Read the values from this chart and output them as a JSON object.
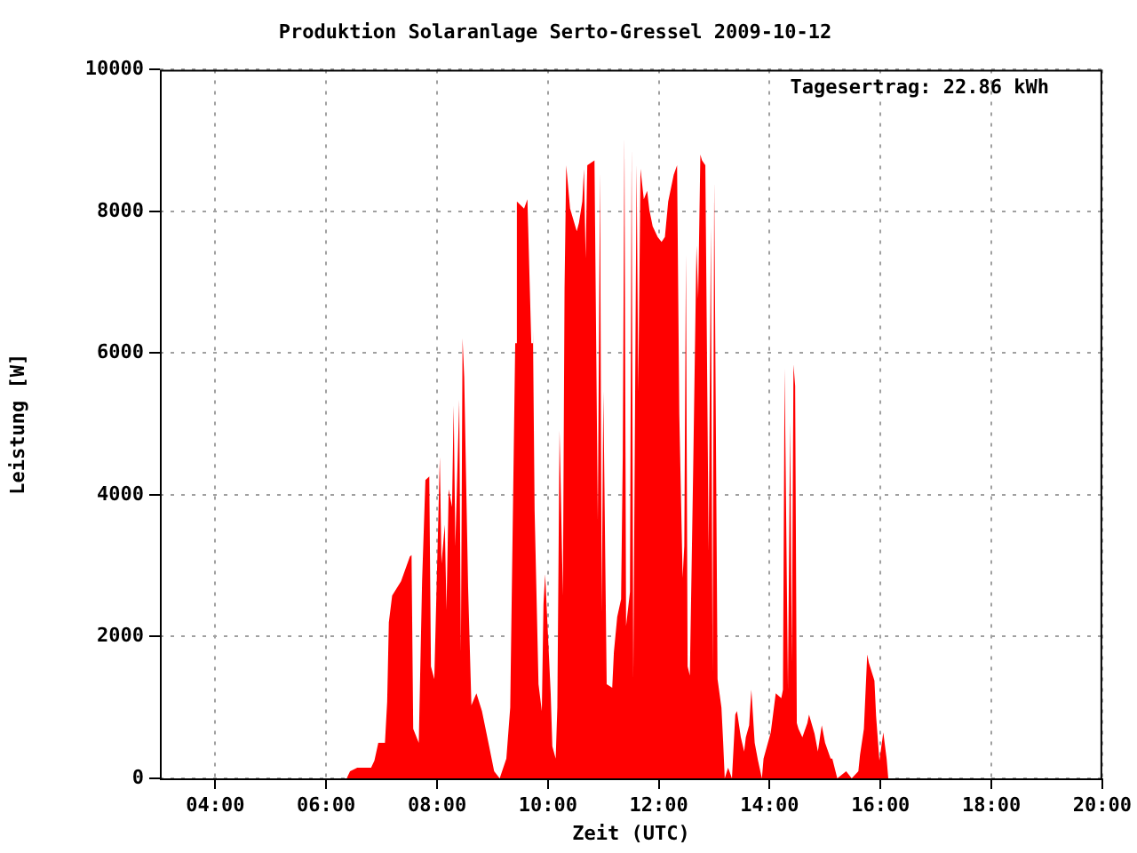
{
  "chart_data": {
    "type": "area",
    "title": "Produktion Solaranlage Serto-Gressel 2009-10-12",
    "xlabel": "Zeit (UTC)",
    "ylabel": "Leistung [W]",
    "annotations": [
      "Tagesertrag: 22.86 kWh"
    ],
    "xlim": [
      3,
      20
    ],
    "xticks": [
      {
        "value": 4,
        "label": "04:00"
      },
      {
        "value": 6,
        "label": "06:00"
      },
      {
        "value": 8,
        "label": "08:00"
      },
      {
        "value": 10,
        "label": "10:00"
      },
      {
        "value": 12,
        "label": "12:00"
      },
      {
        "value": 14,
        "label": "14:00"
      },
      {
        "value": 16,
        "label": "16:00"
      },
      {
        "value": 18,
        "label": "18:00"
      },
      {
        "value": 20,
        "label": "20:00"
      }
    ],
    "ylim": [
      0,
      10000
    ],
    "yticks": [
      0,
      2000,
      4000,
      6000,
      8000,
      10000
    ],
    "grid": true,
    "series": [
      {
        "color": "#ff0000",
        "x": [
          6.37,
          6.43,
          6.56,
          6.68,
          6.81,
          6.87,
          6.94,
          7.06,
          7.1,
          7.13,
          7.19,
          7.35,
          7.51,
          7.54,
          7.57,
          7.67,
          7.73,
          7.79,
          7.86,
          7.89,
          7.95,
          8.05,
          8.08,
          8.14,
          8.17,
          8.21,
          8.27,
          8.3,
          8.33,
          8.4,
          8.43,
          8.46,
          8.49,
          8.56,
          8.62,
          8.71,
          8.81,
          8.94,
          9.03,
          9.13,
          9.25,
          9.32,
          9.41,
          9.44,
          9.57,
          9.63,
          9.7,
          9.73,
          9.76,
          9.83,
          9.89,
          9.92,
          9.95,
          10.05,
          10.08,
          10.14,
          10.17,
          10.21,
          10.27,
          10.3,
          10.33,
          10.4,
          10.52,
          10.56,
          10.62,
          10.65,
          10.68,
          10.71,
          10.84,
          10.9,
          10.94,
          10.97,
          11.0,
          11.06,
          11.16,
          11.19,
          11.25,
          11.32,
          11.35,
          11.38,
          11.41,
          11.48,
          11.51,
          11.54,
          11.6,
          11.63,
          11.67,
          11.73,
          11.79,
          11.83,
          11.89,
          11.98,
          12.05,
          12.11,
          12.17,
          12.27,
          12.33,
          12.37,
          12.43,
          12.46,
          12.49,
          12.52,
          12.56,
          12.59,
          12.62,
          12.68,
          12.71,
          12.75,
          12.78,
          12.84,
          12.9,
          12.94,
          12.97,
          13.0,
          13.06,
          13.13,
          13.16,
          13.19,
          13.25,
          13.32,
          13.38,
          13.41,
          13.48,
          13.54,
          13.57,
          13.63,
          13.67,
          13.73,
          13.79,
          13.86,
          13.89,
          14.02,
          14.11,
          14.21,
          14.24,
          14.27,
          14.33,
          14.37,
          14.4,
          14.43,
          14.46,
          14.49,
          14.52,
          14.59,
          14.68,
          14.71,
          14.81,
          14.87,
          14.94,
          15.0,
          15.1,
          15.13,
          15.22,
          15.38,
          15.48,
          15.6,
          15.63,
          15.7,
          15.76,
          15.79,
          15.89,
          15.92,
          15.98,
          16.05,
          16.11,
          16.14
        ],
        "values": [
          0,
          100,
          150,
          150,
          150,
          250,
          500,
          500,
          1080,
          2200,
          2580,
          2780,
          3130,
          3150,
          700,
          500,
          2780,
          4210,
          4260,
          1580,
          1400,
          4540,
          3030,
          3580,
          2380,
          4080,
          3830,
          5260,
          3280,
          5340,
          1780,
          6210,
          5660,
          2700,
          1030,
          1200,
          950,
          450,
          100,
          0,
          280,
          1000,
          6140,
          8140,
          8040,
          8170,
          6140,
          6340,
          3780,
          1330,
          950,
          2460,
          2880,
          1200,
          450,
          280,
          1000,
          4910,
          2580,
          6920,
          8650,
          8040,
          7720,
          7840,
          8140,
          8600,
          7340,
          8650,
          8720,
          3630,
          8550,
          2330,
          5460,
          1330,
          1280,
          1780,
          2280,
          2530,
          4540,
          9050,
          2150,
          2630,
          8900,
          1400,
          8670,
          5460,
          8600,
          8170,
          8290,
          8020,
          7790,
          7640,
          7570,
          7640,
          8140,
          8520,
          8650,
          5140,
          2830,
          3280,
          7390,
          1580,
          1450,
          2880,
          4340,
          7520,
          6770,
          8800,
          8720,
          8650,
          3210,
          7790,
          1500,
          8420,
          1400,
          1000,
          530,
          0,
          150,
          0,
          900,
          950,
          580,
          380,
          580,
          750,
          1250,
          500,
          250,
          0,
          280,
          650,
          1200,
          1130,
          1250,
          5790,
          1250,
          5040,
          1630,
          5840,
          5540,
          780,
          700,
          580,
          780,
          900,
          630,
          380,
          750,
          500,
          280,
          280,
          0,
          100,
          0,
          100,
          330,
          700,
          1750,
          1630,
          1380,
          880,
          250,
          650,
          280,
          0
        ]
      }
    ]
  }
}
